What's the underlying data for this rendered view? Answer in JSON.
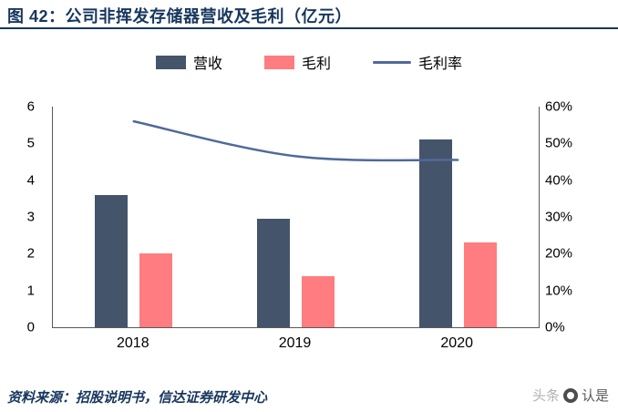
{
  "figure": {
    "title": "图 42：公司非挥发存储器营收及毛利（亿元）",
    "source": "资料来源：招股说明书，信达证券研发中心"
  },
  "watermark": {
    "prefix": "头条",
    "handle": "认是"
  },
  "colors": {
    "title_navy": "#17375E",
    "axis_line": "#595959",
    "axis_text": "#000000",
    "revenue_bar": "#44546A",
    "profit_bar": "#FF7C80",
    "margin_line": "#50699C",
    "watermark_gray": "#b3b3b3"
  },
  "chart_data": {
    "type": "bar",
    "subtype": "grouped bars with overlaid line (dual axis)",
    "title": "公司非挥发存储器营收及毛利（亿元）",
    "categories": [
      "2018",
      "2019",
      "2020"
    ],
    "series": [
      {
        "key": "revenue",
        "name": "营收",
        "type": "bar",
        "axis": "left",
        "color": "#44546A",
        "values": [
          3.6,
          2.95,
          5.1
        ]
      },
      {
        "key": "profit",
        "name": "毛利",
        "type": "bar",
        "axis": "left",
        "color": "#FF7C80",
        "values": [
          2.0,
          1.4,
          2.3
        ]
      },
      {
        "key": "margin",
        "name": "毛利率",
        "type": "line",
        "axis": "right",
        "color": "#50699C",
        "unit": "%",
        "values": [
          56,
          46.5,
          45.5
        ]
      }
    ],
    "left_axis": {
      "min": 0,
      "max": 6,
      "ticks": [
        "0",
        "1",
        "2",
        "3",
        "4",
        "5",
        "6"
      ]
    },
    "right_axis": {
      "min_percent": 0,
      "max_percent": 60,
      "ticks": [
        "0%",
        "10%",
        "20%",
        "30%",
        "40%",
        "50%",
        "60%"
      ]
    },
    "grid": false,
    "legend_position": "top"
  }
}
